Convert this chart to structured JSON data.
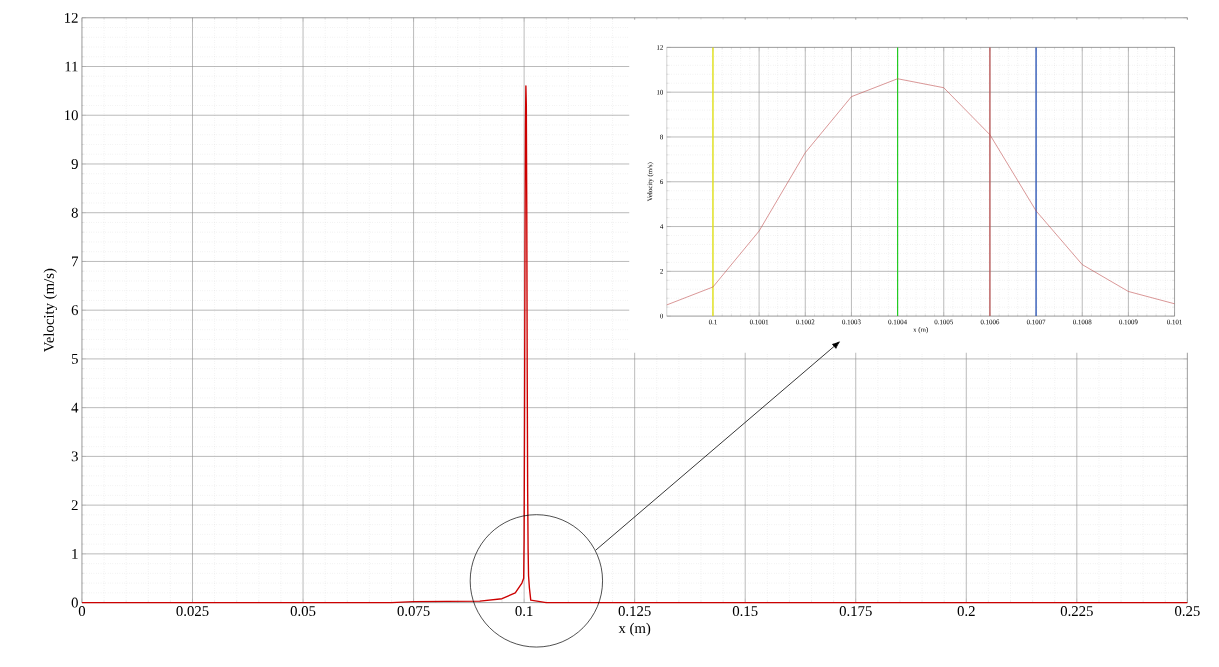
{
  "chart_data": [
    {
      "type": "line",
      "xlabel": "x (m)",
      "ylabel": "Velocity (m/s)",
      "x": [
        0,
        0.07,
        0.075,
        0.09,
        0.095,
        0.098,
        0.0995,
        0.0999,
        0.1,
        0.1001,
        0.1002,
        0.1003,
        0.1004,
        0.1005,
        0.1006,
        0.1007,
        0.1008,
        0.1009,
        0.101,
        0.1012,
        0.1015,
        0.105,
        0.25
      ],
      "series": [
        {
          "color": "#cc0000",
          "values": [
            0,
            0,
            0.02,
            0.03,
            0.08,
            0.2,
            0.4,
            0.5,
            1.3,
            3.8,
            7.3,
            9.8,
            10.6,
            10.2,
            8.1,
            4.7,
            2.3,
            1.1,
            0.55,
            0.3,
            0.05,
            0,
            0
          ]
        }
      ],
      "xlim": [
        0,
        0.25
      ],
      "xticks": [
        0,
        0.025,
        0.05,
        0.075,
        0.1,
        0.125,
        0.15,
        0.175,
        0.2,
        0.225,
        0.25
      ],
      "ylim": [
        0,
        12
      ],
      "yticks": [
        0,
        1,
        2,
        3,
        4,
        5,
        6,
        7,
        8,
        9,
        10,
        11,
        12
      ],
      "grid": true
    },
    {
      "type": "line",
      "xlabel": "x (m)",
      "ylabel": "Velocity (m/s)",
      "x": [
        0.0999,
        0.1,
        0.1001,
        0.1002,
        0.1003,
        0.1004,
        0.1005,
        0.1006,
        0.1007,
        0.1008,
        0.1009,
        0.101
      ],
      "series": [
        {
          "color": "#c05050",
          "values": [
            0.5,
            1.3,
            3.8,
            7.3,
            9.8,
            10.6,
            10.2,
            8.1,
            4.7,
            2.3,
            1.1,
            0.55
          ]
        }
      ],
      "xlim": [
        0.0999,
        0.101
      ],
      "xticks": [
        0.1,
        0.1001,
        0.1002,
        0.1003,
        0.1004,
        0.1005,
        0.1006,
        0.1007,
        0.1008,
        0.1009,
        0.101
      ],
      "ylim": [
        0,
        12
      ],
      "yticks": [
        0,
        2,
        4,
        6,
        8,
        10,
        12
      ],
      "grid": true,
      "ref_lines": [
        {
          "axis": "x",
          "value": 0.1,
          "color": "#f0f000"
        },
        {
          "axis": "x",
          "value": 0.1004,
          "color": "#22cc22"
        },
        {
          "axis": "x",
          "value": 0.1006,
          "color": "#c05050"
        },
        {
          "axis": "x",
          "value": 0.1007,
          "color": "#2050c0"
        }
      ]
    }
  ]
}
